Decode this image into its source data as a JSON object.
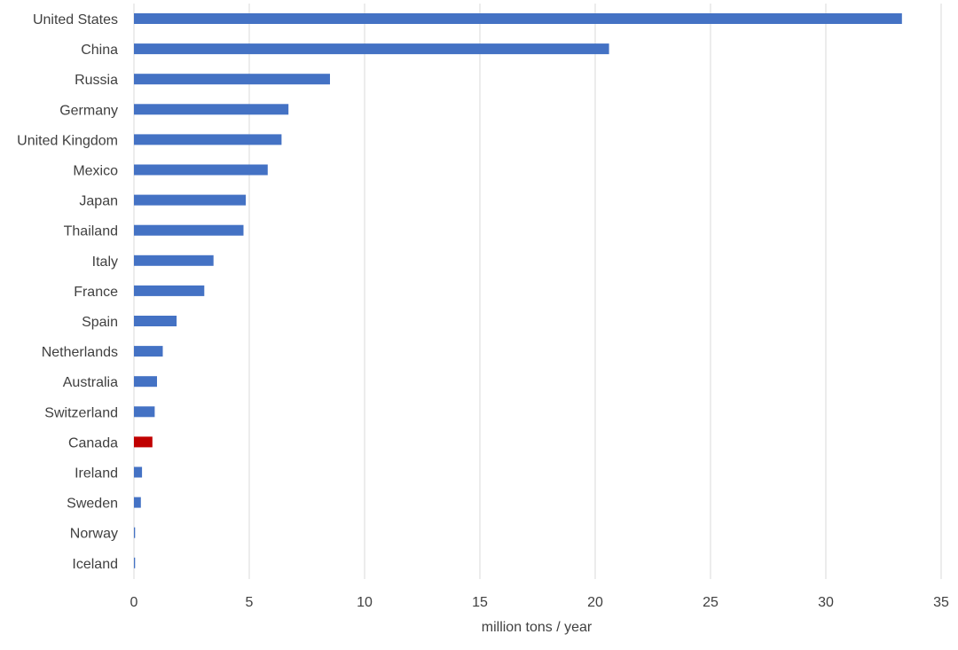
{
  "chart_data": {
    "type": "bar",
    "orientation": "horizontal",
    "categories": [
      "United States",
      "China",
      "Russia",
      "Germany",
      "United Kingdom",
      "Mexico",
      "Japan",
      "Thailand",
      "Italy",
      "France",
      "Spain",
      "Netherlands",
      "Australia",
      "Switzerland",
      "Canada",
      "Ireland",
      "Sweden",
      "Norway",
      "Iceland"
    ],
    "values": [
      33.3,
      20.6,
      8.5,
      6.7,
      6.4,
      5.8,
      4.85,
      4.75,
      3.45,
      3.05,
      1.85,
      1.25,
      1.0,
      0.9,
      0.8,
      0.35,
      0.3,
      0.05,
      0.05
    ],
    "highlight": "Canada",
    "title": "",
    "xlabel": "million tons / year",
    "ylabel": "",
    "xlim": [
      0,
      35
    ],
    "xticks": [
      0,
      5,
      10,
      15,
      20,
      25,
      30,
      35
    ],
    "grid": "vertical",
    "colors": {
      "bar": "#4472C4",
      "highlight": "#C00000",
      "grid": "#D9D9D9",
      "text": "#404040"
    }
  }
}
